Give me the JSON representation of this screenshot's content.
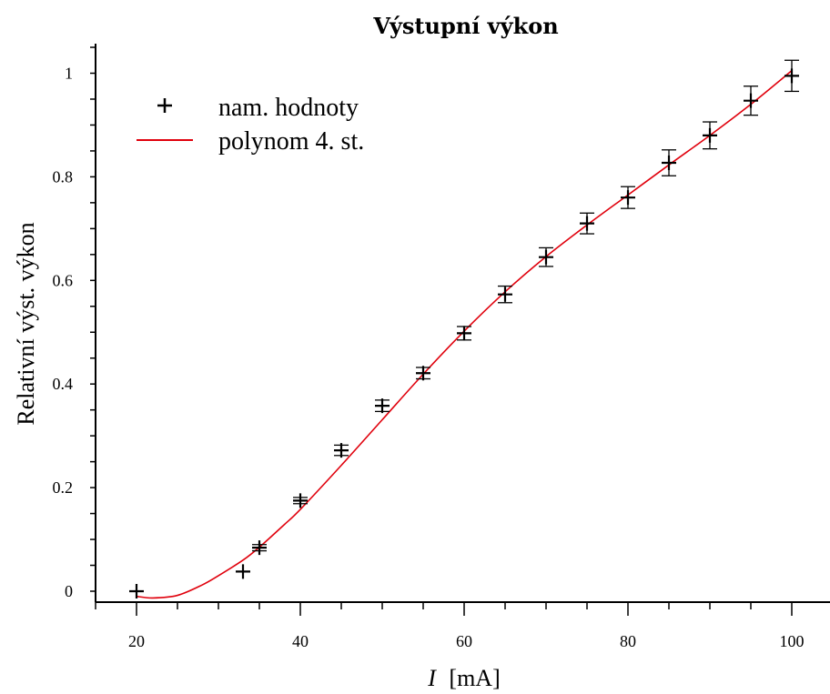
{
  "chart_data": {
    "type": "scatter",
    "title": "Výstupní výkon",
    "xlabel_var": "I",
    "xlabel_unit": "[mA]",
    "ylabel": "Relativní výst. výkon",
    "xlim": [
      15,
      102
    ],
    "ylim": [
      -0.02,
      1.06
    ],
    "xticks": [
      20,
      40,
      60,
      80,
      100
    ],
    "xticks_minor_step": 5,
    "yticks": [
      0,
      0.2,
      0.4,
      0.6,
      0.8,
      1
    ],
    "yticks_minor_step": 0.05,
    "ytick_labels": [
      "0",
      "0.2",
      "0.4",
      "0.6",
      "0.8",
      "1"
    ],
    "xtick_labels": [
      "20",
      "40",
      "60",
      "80",
      "100"
    ],
    "grid": false,
    "legend_position": "top-left",
    "series": [
      {
        "name": "nam. hodnoty",
        "kind": "points-with-errorbars",
        "color": "#000000",
        "x": [
          20,
          33,
          35,
          40,
          45,
          50,
          55,
          60,
          65,
          70,
          75,
          80,
          85,
          90,
          95,
          100
        ],
        "y": [
          0.0,
          0.038,
          0.084,
          0.175,
          0.272,
          0.358,
          0.421,
          0.498,
          0.573,
          0.645,
          0.71,
          0.76,
          0.827,
          0.88,
          0.947,
          0.995
        ],
        "yerr": [
          0.0,
          0.0,
          0.006,
          0.006,
          0.01,
          0.011,
          0.011,
          0.013,
          0.016,
          0.018,
          0.02,
          0.021,
          0.025,
          0.026,
          0.028,
          0.03
        ]
      },
      {
        "name": "polynom 4. st.",
        "kind": "curve",
        "color": "#e0000c",
        "x": [
          20,
          22,
          25,
          28,
          30,
          33,
          35,
          38,
          40,
          45,
          50,
          55,
          60,
          65,
          70,
          75,
          80,
          85,
          90,
          95,
          100
        ],
        "y": [
          -0.01,
          -0.013,
          -0.008,
          0.012,
          0.03,
          0.06,
          0.085,
          0.128,
          0.158,
          0.243,
          0.331,
          0.419,
          0.502,
          0.578,
          0.646,
          0.707,
          0.765,
          0.823,
          0.88,
          0.94,
          1.005
        ]
      }
    ]
  }
}
